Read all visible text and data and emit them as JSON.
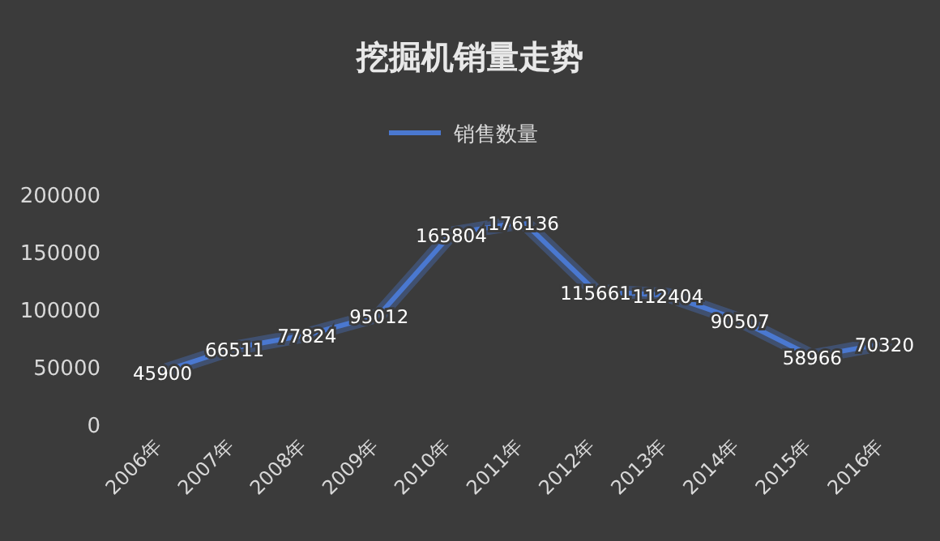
{
  "chart_data": {
    "type": "line",
    "title": "挖掘机销量走势",
    "legend": "top",
    "marker": "none",
    "data_labels": true,
    "categories": [
      "2006年",
      "2007年",
      "2008年",
      "2009年",
      "2010年",
      "2011年",
      "2012年",
      "2013年",
      "2014年",
      "2015年",
      "2016年"
    ],
    "series": [
      {
        "name": "销售数量",
        "color": "#4a78d0",
        "values": [
          45900,
          66511,
          77824,
          95012,
          165804,
          176136,
          115661,
          112404,
          90507,
          58966,
          70320
        ]
      }
    ],
    "ylim": [
      0,
      200000
    ],
    "yticks": [
      0,
      50000,
      100000,
      150000,
      200000
    ]
  }
}
